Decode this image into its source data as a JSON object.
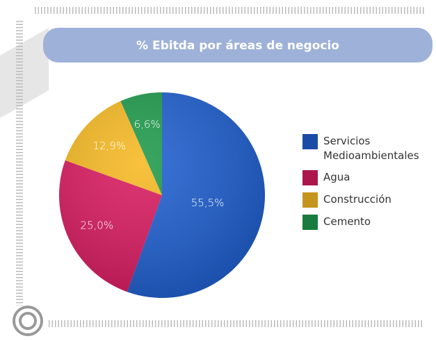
{
  "chart_data": {
    "type": "pie",
    "title": "% Ebitda por áreas de negocio",
    "categories": [
      "Servicios Medioambientales",
      "Agua",
      "Construcción",
      "Cemento"
    ],
    "values": [
      55.5,
      25.0,
      12.9,
      6.6
    ],
    "value_labels": [
      "55,5%",
      "25,0%",
      "12,9%",
      "6,6%"
    ],
    "colors": [
      "#1f5fcf",
      "#d81b60",
      "#f6b923",
      "#1f9a4c"
    ],
    "legend": "right"
  }
}
